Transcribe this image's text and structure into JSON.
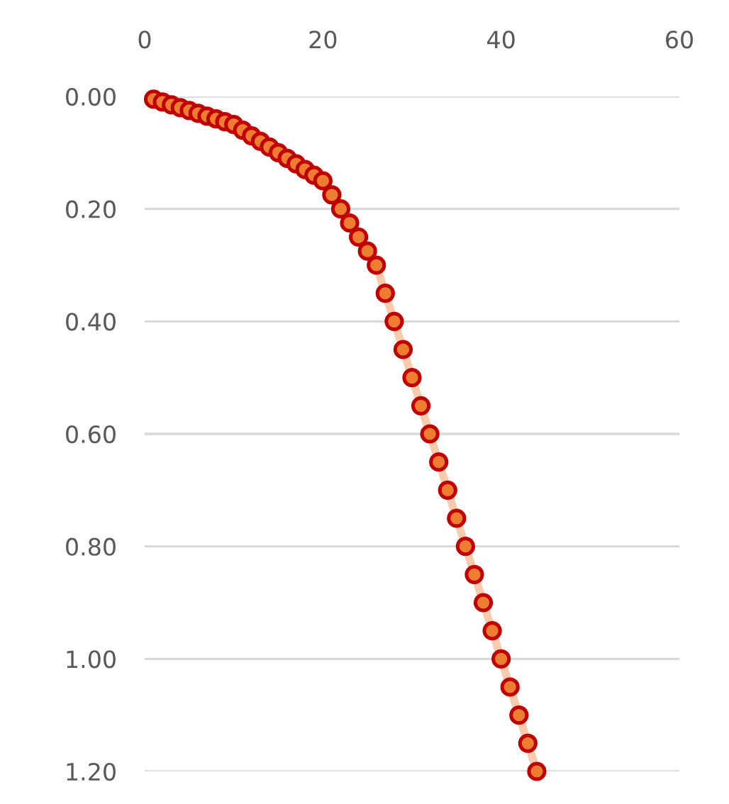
{
  "chart_data": {
    "type": "line",
    "marker": "circle",
    "line_style": "solid",
    "grid": "y",
    "x": [
      1,
      2,
      3,
      4,
      5,
      6,
      7,
      8,
      9,
      10,
      11,
      12,
      13,
      14,
      15,
      16,
      17,
      18,
      19,
      20,
      21,
      22,
      23,
      24,
      25,
      26,
      27,
      28,
      29,
      30,
      31,
      32,
      33,
      34,
      35,
      36,
      37,
      38,
      39,
      40,
      41,
      42,
      43,
      44
    ],
    "series": [
      {
        "color": "#f8cbad",
        "values": [
          0.005,
          0.01,
          0.015,
          0.02,
          0.025,
          0.03,
          0.035,
          0.04,
          0.045,
          0.05,
          0.06,
          0.07,
          0.08,
          0.09,
          0.1,
          0.11,
          0.12,
          0.13,
          0.14,
          0.15,
          0.175,
          0.2,
          0.225,
          0.25,
          0.275,
          0.3,
          0.35,
          0.4,
          0.45,
          0.5,
          0.55,
          0.6,
          0.65,
          0.7,
          0.75,
          0.8,
          0.85,
          0.9,
          0.95,
          1.0,
          1.05,
          1.1,
          1.15,
          1.2
        ]
      }
    ],
    "xlim": [
      0,
      60
    ],
    "xticks": [
      0,
      20,
      40,
      60
    ],
    "ylim": [
      1.2,
      0.0
    ],
    "yticks": [
      {
        "value": 0.0,
        "label": "0.00"
      },
      {
        "value": 0.2,
        "label": "0.20"
      },
      {
        "value": 0.4,
        "label": "0.40"
      },
      {
        "value": 0.6,
        "label": "0.60"
      },
      {
        "value": 0.8,
        "label": "0.80"
      },
      {
        "value": 1.0,
        "label": "1.00"
      },
      {
        "value": 1.2,
        "label": "1.20"
      }
    ]
  }
}
